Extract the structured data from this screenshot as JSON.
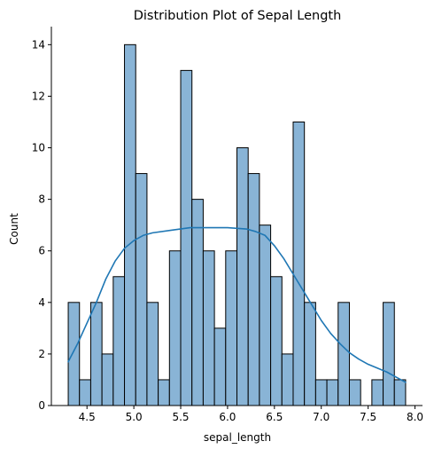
{
  "chart_data": {
    "type": "bar",
    "title": "Distribution Plot of Sepal Length",
    "xlabel": "sepal_length",
    "ylabel": "Count",
    "xlim": [
      4.12,
      8.08
    ],
    "ylim": [
      0,
      14.7
    ],
    "bin_start": 4.3,
    "bin_width": 0.12,
    "values": [
      4,
      1,
      4,
      2,
      5,
      14,
      9,
      4,
      1,
      6,
      13,
      8,
      6,
      3,
      6,
      10,
      9,
      7,
      5,
      2,
      11,
      4,
      1,
      1,
      4,
      1,
      0,
      1,
      4,
      1
    ],
    "xticks": [
      "4.5",
      "5.0",
      "5.5",
      "6.0",
      "6.5",
      "7.0",
      "7.5",
      "8.0"
    ],
    "xtick_values": [
      4.5,
      5.0,
      5.5,
      6.0,
      6.5,
      7.0,
      7.5,
      8.0
    ],
    "yticks": [
      "0",
      "2",
      "4",
      "6",
      "8",
      "10",
      "12",
      "14"
    ],
    "ytick_values": [
      0,
      2,
      4,
      6,
      8,
      10,
      12,
      14
    ],
    "kde": {
      "x": [
        4.3,
        4.4,
        4.5,
        4.6,
        4.7,
        4.8,
        4.9,
        5.0,
        5.1,
        5.2,
        5.4,
        5.6,
        5.8,
        6.0,
        6.2,
        6.3,
        6.4,
        6.5,
        6.6,
        6.7,
        6.8,
        6.9,
        7.0,
        7.1,
        7.2,
        7.3,
        7.4,
        7.5,
        7.6,
        7.7,
        7.8,
        7.9
      ],
      "y": [
        1.7,
        2.4,
        3.2,
        4.0,
        4.9,
        5.6,
        6.1,
        6.4,
        6.6,
        6.7,
        6.8,
        6.9,
        6.9,
        6.9,
        6.85,
        6.75,
        6.6,
        6.2,
        5.7,
        5.1,
        4.5,
        3.9,
        3.3,
        2.8,
        2.4,
        2.05,
        1.8,
        1.6,
        1.45,
        1.3,
        1.1,
        0.9
      ]
    },
    "colors": {
      "bar_fill": "#89b4d6",
      "bar_edge": "#000000",
      "kde_line": "#1f77b4",
      "axis": "#000000"
    },
    "grid": false,
    "legend": "none"
  }
}
